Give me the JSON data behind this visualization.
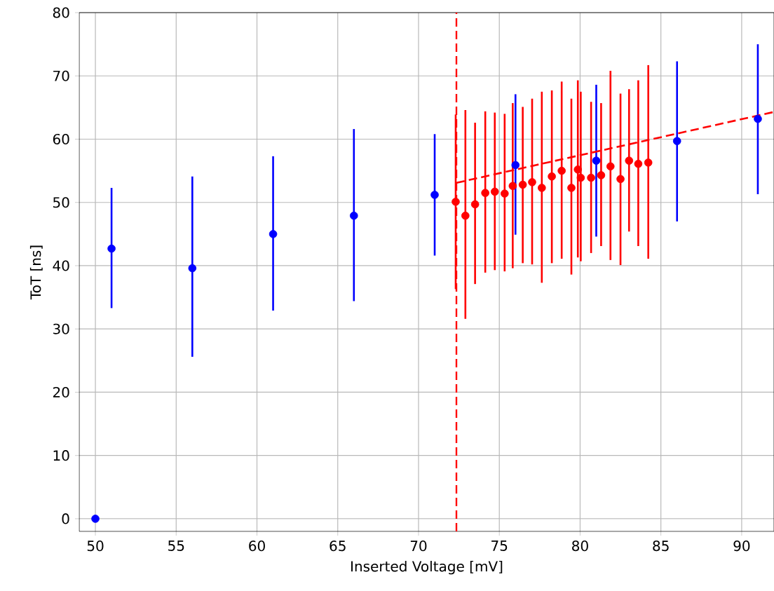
{
  "chart_data": {
    "type": "scatter",
    "xlabel": "Inserted Voltage [mV]",
    "ylabel": "ToT [ns]",
    "xlim": [
      49,
      92
    ],
    "ylim": [
      -2,
      80
    ],
    "xticks": [
      50,
      55,
      60,
      65,
      70,
      75,
      80,
      85,
      90
    ],
    "yticks": [
      0,
      10,
      20,
      30,
      40,
      50,
      60,
      70,
      80
    ],
    "grid": true,
    "marker": "circle",
    "series": [
      {
        "color": "#0000ff",
        "x": [
          50,
          51,
          56,
          61,
          66,
          71,
          76,
          81,
          86,
          91
        ],
        "values": [
          0,
          42.7,
          39.6,
          45,
          47.9,
          51.2,
          55.9,
          56.6,
          59.7,
          63.2
        ],
        "errors": [
          null,
          [
            33.3,
            52.3
          ],
          [
            25.6,
            54.1
          ],
          [
            32.9,
            57.3
          ],
          [
            34.4,
            61.6
          ],
          [
            41.6,
            60.8
          ],
          [
            44.9,
            67.1
          ],
          [
            44.6,
            68.6
          ],
          [
            47,
            72.3
          ],
          [
            51.3,
            75
          ]
        ]
      },
      {
        "color": "#ff0000",
        "x": [
          72.3,
          72.9,
          73.5,
          74.13,
          74.72,
          75.33,
          75.83,
          76.45,
          77.03,
          77.63,
          78.25,
          78.86,
          79.46,
          79.86,
          80.04,
          80.68,
          81.3,
          81.88,
          82.5,
          83.03,
          83.6,
          84.22
        ],
        "values": [
          50.1,
          47.9,
          49.7,
          51.5,
          51.7,
          51.4,
          52.6,
          52.8,
          53.2,
          52.3,
          54.1,
          55,
          52.3,
          55.2,
          53.9,
          53.9,
          54.3,
          55.7,
          53.7,
          56.6,
          56.1,
          56.3
        ],
        "errors": [
          [
            36.3,
            63.9
          ],
          [
            31.6,
            64.6
          ],
          [
            37.1,
            62.6
          ],
          [
            38.9,
            64.4
          ],
          [
            39.3,
            64.2
          ],
          [
            39.1,
            64
          ],
          [
            39.6,
            65.7
          ],
          [
            40.4,
            65.1
          ],
          [
            40.2,
            66.4
          ],
          [
            37.3,
            67.5
          ],
          [
            40.4,
            67.7
          ],
          [
            41.1,
            69.1
          ],
          [
            38.6,
            66.4
          ],
          [
            41.3,
            69.3
          ],
          [
            40.7,
            67.5
          ],
          [
            42,
            65.9
          ],
          [
            43.1,
            65.7
          ],
          [
            40.9,
            70.8
          ],
          [
            40.1,
            67.2
          ],
          [
            45.4,
            67.9
          ],
          [
            43.1,
            69.3
          ],
          [
            41.1,
            71.7
          ]
        ]
      },
      {
        "type": "line",
        "color": "#ff0000",
        "line_style": "dashed",
        "marker": "none",
        "x": [
          72.35,
          92
        ],
        "values": [
          53.1,
          64.3
        ]
      }
    ],
    "ref_lines": [
      {
        "axis": "x",
        "value": 72.35,
        "color": "#ff0000",
        "line_style": "dashed"
      }
    ]
  }
}
